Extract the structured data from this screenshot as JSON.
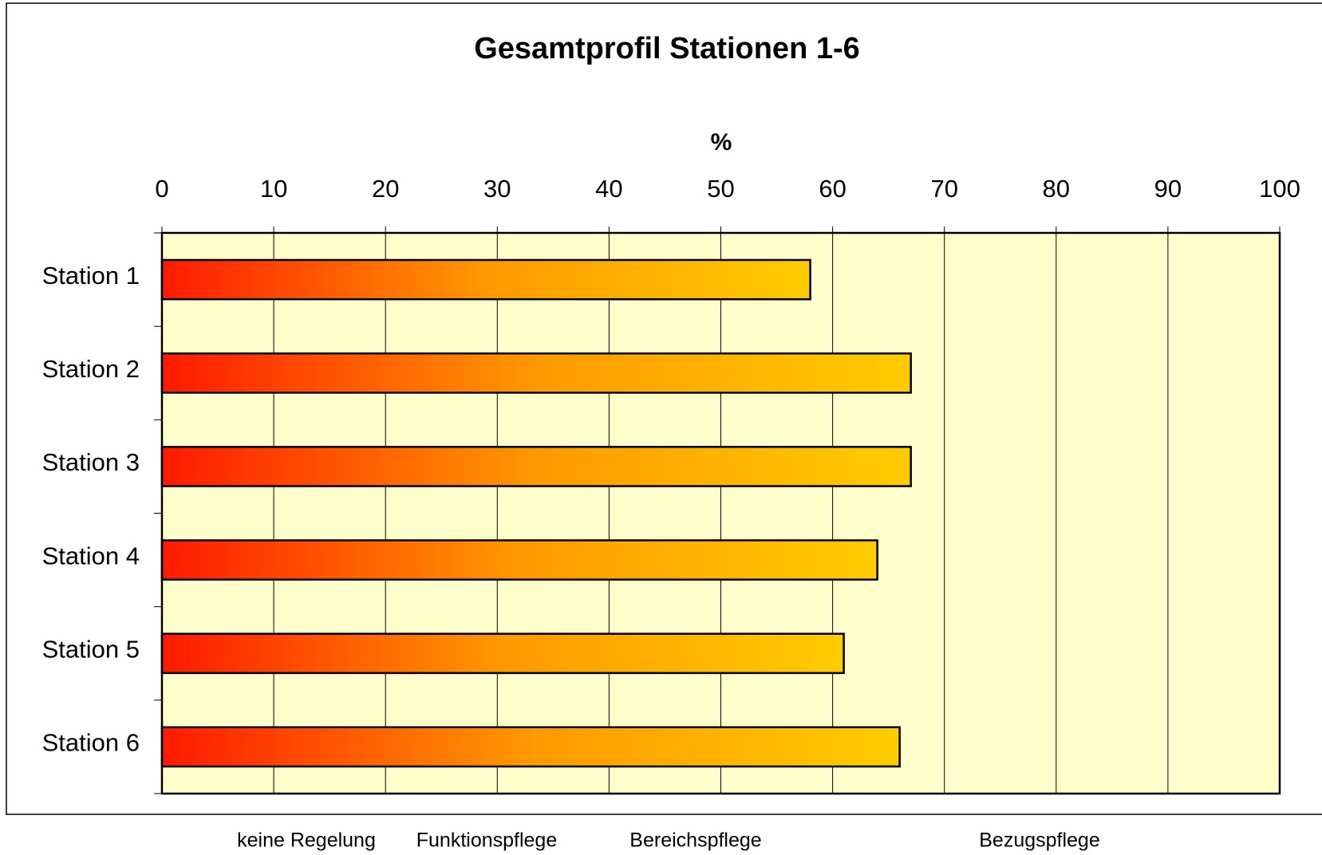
{
  "chart_data": {
    "type": "bar",
    "orientation": "horizontal",
    "title": "Gesamtprofil Stationen 1-6",
    "x_label": "%",
    "categories": [
      "Station 1",
      "Station 2",
      "Station 3",
      "Station 4",
      "Station 5",
      "Station 6"
    ],
    "values": [
      58,
      67,
      67,
      64,
      61,
      66
    ],
    "gradient": [
      "#ff1a00",
      "#ff9900",
      "#ffcc00"
    ],
    "plot_background": "#ffffcc",
    "xlim": [
      0,
      100
    ],
    "xticks": [
      0,
      10,
      20,
      30,
      40,
      50,
      60,
      70,
      80,
      90,
      100
    ],
    "grid": true,
    "annotations": [
      "keine Regelung",
      "Funktionspflege",
      "Bereichspflege",
      "Bezugspflege"
    ]
  }
}
